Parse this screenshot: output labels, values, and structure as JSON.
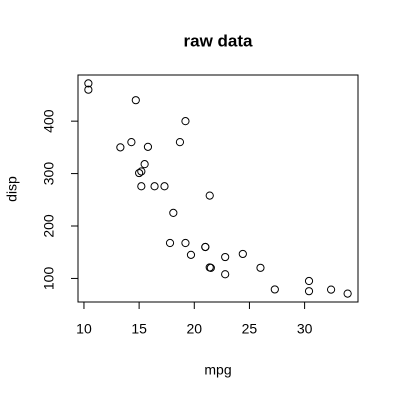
{
  "chart_data": {
    "type": "scatter",
    "title": "raw data",
    "x_label": "mpg",
    "y_label": "disp",
    "x": [
      21.0,
      21.0,
      22.8,
      21.4,
      18.7,
      18.1,
      14.3,
      24.4,
      22.8,
      19.2,
      17.8,
      16.4,
      17.3,
      15.2,
      10.4,
      10.4,
      14.7,
      32.4,
      30.4,
      33.9,
      21.5,
      15.5,
      15.2,
      13.3,
      19.2,
      27.3,
      26.0,
      30.4,
      15.8,
      19.7,
      15.0,
      21.4
    ],
    "values": [
      160,
      160,
      108,
      258,
      360,
      225,
      360,
      146.7,
      140.8,
      167.6,
      167.6,
      275.8,
      275.8,
      275.8,
      472,
      460,
      440,
      78.7,
      75.7,
      71.1,
      120.1,
      318,
      304,
      350,
      400,
      79,
      120.3,
      95.1,
      351,
      145,
      301,
      121
    ],
    "color": "#000000",
    "xlim": [
      9.46,
      34.84
    ],
    "ylim": [
      55.064,
      488.036
    ],
    "xticks": [
      10,
      15,
      20,
      25,
      30
    ],
    "yticks": [
      100,
      200,
      300,
      400
    ]
  }
}
